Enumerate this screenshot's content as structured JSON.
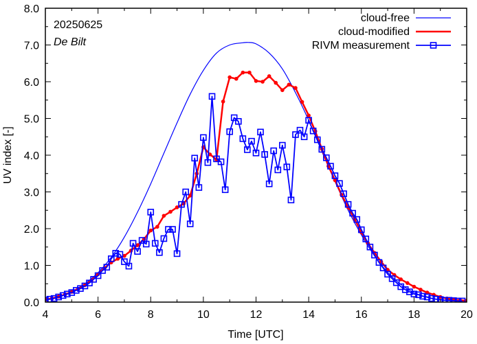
{
  "chart_data": {
    "type": "line",
    "title": "",
    "annotations": [
      "20250625",
      "De Bilt"
    ],
    "xlabel": "Time  [UTC]",
    "ylabel": "UV index  [-]",
    "xlim": [
      4,
      20
    ],
    "ylim": [
      0,
      8
    ],
    "xticks": [
      4,
      6,
      8,
      10,
      12,
      14,
      16,
      18,
      20
    ],
    "xtick_labels": [
      "4",
      "6",
      "8",
      "10",
      "12",
      "14",
      "16",
      "18",
      "20"
    ],
    "xminor": [
      5,
      7,
      9,
      11,
      13,
      15,
      17,
      19
    ],
    "yticks": [
      0,
      1,
      2,
      3,
      4,
      5,
      6,
      7,
      8
    ],
    "ytick_labels": [
      "0.0",
      "1.0",
      "2.0",
      "3.0",
      "4.0",
      "5.0",
      "6.0",
      "7.0",
      "8.0"
    ],
    "yminor": [
      0.5,
      1.5,
      2.5,
      3.5,
      4.5,
      5.5,
      6.5,
      7.5
    ],
    "grid": false,
    "legend_position": "top-right",
    "series": [
      {
        "name": "cloud-free",
        "color": "#0000ff",
        "style": "thin-line",
        "x": [
          4.0,
          4.5,
          5.0,
          5.5,
          6.0,
          6.5,
          7.0,
          7.5,
          8.0,
          8.5,
          9.0,
          9.5,
          10.0,
          10.5,
          11.0,
          11.5,
          11.7,
          12.0,
          12.5,
          13.0,
          13.5,
          14.0,
          14.5,
          15.0,
          15.5,
          16.0,
          16.5,
          17.0,
          17.5,
          18.0,
          18.5,
          19.0,
          19.5,
          20.0
        ],
        "y": [
          0.06,
          0.15,
          0.29,
          0.5,
          0.8,
          1.22,
          1.77,
          2.45,
          3.22,
          4.05,
          4.88,
          5.66,
          6.31,
          6.78,
          7.0,
          7.06,
          7.07,
          7.03,
          6.78,
          6.35,
          5.7,
          4.95,
          4.1,
          3.28,
          2.5,
          1.83,
          1.26,
          0.81,
          0.48,
          0.26,
          0.13,
          0.06,
          0.03,
          0.02
        ]
      },
      {
        "name": "cloud-modified",
        "color": "#ff0000",
        "style": "thick-line-dots",
        "x": [
          4.0,
          4.25,
          4.5,
          4.75,
          5.0,
          5.25,
          5.5,
          5.75,
          6.0,
          6.25,
          6.5,
          6.75,
          7.0,
          7.25,
          7.5,
          7.75,
          8.0,
          8.25,
          8.5,
          8.75,
          9.0,
          9.25,
          9.5,
          9.75,
          10.0,
          10.25,
          10.5,
          10.75,
          11.0,
          11.25,
          11.5,
          11.75,
          12.0,
          12.25,
          12.5,
          12.75,
          13.0,
          13.25,
          13.5,
          13.75,
          14.0,
          14.25,
          14.5,
          14.75,
          15.0,
          15.25,
          15.5,
          15.75,
          16.0,
          16.25,
          16.5,
          16.75,
          17.0,
          17.25,
          17.5,
          17.75,
          18.0,
          18.25,
          18.5,
          18.75,
          19.0,
          19.25,
          19.5,
          19.75,
          20.0
        ],
        "y": [
          0.07,
          0.1,
          0.15,
          0.21,
          0.28,
          0.36,
          0.46,
          0.59,
          0.76,
          0.93,
          1.08,
          1.18,
          1.26,
          1.4,
          1.55,
          1.72,
          1.95,
          2.05,
          2.35,
          2.46,
          2.58,
          2.68,
          2.9,
          3.5,
          4.22,
          4.02,
          3.88,
          5.46,
          6.12,
          6.08,
          6.25,
          6.25,
          6.02,
          6.0,
          6.15,
          5.97,
          5.77,
          5.92,
          5.83,
          5.45,
          5.08,
          4.65,
          4.17,
          3.7,
          3.32,
          2.92,
          2.58,
          2.25,
          1.9,
          1.6,
          1.34,
          1.1,
          0.88,
          0.74,
          0.62,
          0.52,
          0.42,
          0.34,
          0.26,
          0.2,
          0.14,
          0.1,
          0.07,
          0.05,
          0.04
        ]
      },
      {
        "name": "RIVM measurement",
        "color": "#0000ff",
        "style": "line-squares",
        "x": [
          4.0,
          4.17,
          4.33,
          4.5,
          4.67,
          4.83,
          5.0,
          5.17,
          5.33,
          5.5,
          5.67,
          5.83,
          6.0,
          6.17,
          6.33,
          6.5,
          6.67,
          6.83,
          7.0,
          7.17,
          7.33,
          7.5,
          7.67,
          7.83,
          8.0,
          8.17,
          8.33,
          8.5,
          8.67,
          8.83,
          9.0,
          9.17,
          9.33,
          9.5,
          9.67,
          9.83,
          10.0,
          10.17,
          10.33,
          10.5,
          10.67,
          10.83,
          11.0,
          11.17,
          11.33,
          11.5,
          11.67,
          11.83,
          12.0,
          12.17,
          12.33,
          12.5,
          12.67,
          12.83,
          13.0,
          13.17,
          13.33,
          13.5,
          13.67,
          13.83,
          14.0,
          14.17,
          14.33,
          14.5,
          14.67,
          14.83,
          15.0,
          15.17,
          15.33,
          15.5,
          15.67,
          15.83,
          16.0,
          16.17,
          16.33,
          16.5,
          16.67,
          16.83,
          17.0,
          17.17,
          17.33,
          17.5,
          17.67,
          17.83,
          18.0,
          18.17,
          18.33,
          18.5,
          18.67,
          18.83,
          19.0,
          19.17,
          19.33,
          19.5,
          19.67,
          19.83
        ],
        "y": [
          0.05,
          0.08,
          0.1,
          0.14,
          0.18,
          0.22,
          0.26,
          0.32,
          0.37,
          0.44,
          0.52,
          0.62,
          0.72,
          0.86,
          0.95,
          1.18,
          1.33,
          1.3,
          1.1,
          0.98,
          1.6,
          1.38,
          1.68,
          1.58,
          2.45,
          1.6,
          1.35,
          1.73,
          1.98,
          1.98,
          1.32,
          2.66,
          3.0,
          2.13,
          3.92,
          3.12,
          4.48,
          3.8,
          5.6,
          3.9,
          3.82,
          3.06,
          4.64,
          5.02,
          4.92,
          4.45,
          4.15,
          4.38,
          4.06,
          4.63,
          4.02,
          3.22,
          4.12,
          3.6,
          4.27,
          3.68,
          2.78,
          4.56,
          4.68,
          4.5,
          4.95,
          4.66,
          4.42,
          4.16,
          3.93,
          3.7,
          3.44,
          3.23,
          2.95,
          2.66,
          2.42,
          2.25,
          1.97,
          1.72,
          1.5,
          1.28,
          1.08,
          0.93,
          0.76,
          0.64,
          0.53,
          0.42,
          0.34,
          0.28,
          0.22,
          0.2,
          0.16,
          0.14,
          0.1,
          0.08,
          0.07,
          0.05,
          0.05,
          0.04,
          0.03,
          0.03
        ]
      }
    ]
  }
}
